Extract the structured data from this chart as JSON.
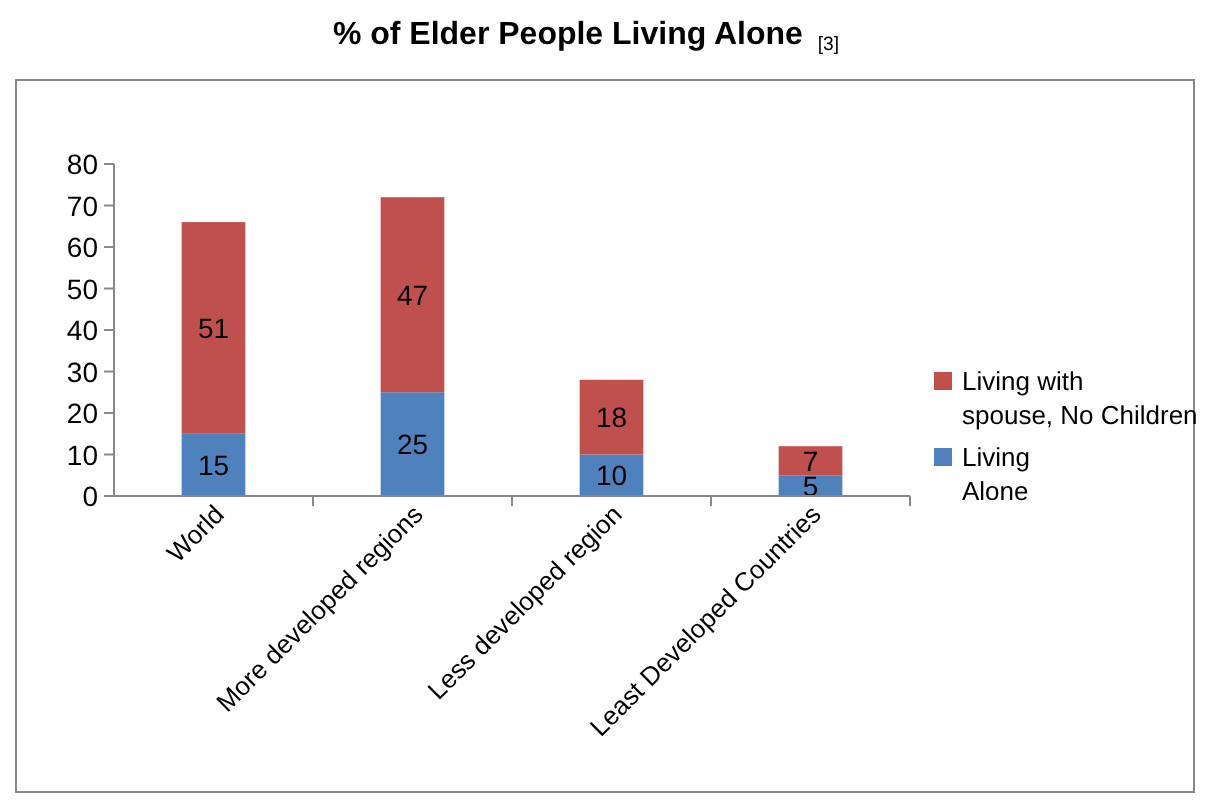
{
  "chart_data": {
    "type": "bar",
    "title": "% of Elder People Living Alone $_{[3]}$",
    "categories": [
      "World",
      "More developed regions",
      "Less developed region",
      "Least Developed Countries"
    ],
    "stacked": true,
    "data_labels": true,
    "legend": "right",
    "grid": false,
    "ylim": [
      0,
      80
    ],
    "yticks": [
      0,
      10,
      20,
      30,
      40,
      50,
      60,
      70,
      80
    ],
    "series": [
      {
        "name": "Living Alone",
        "color": "#4f81bd",
        "values": [
          15,
          25,
          10,
          5
        ]
      },
      {
        "name": "Living with spouse, No Children",
        "color": "#c0504d",
        "values": [
          51,
          47,
          18,
          7
        ]
      }
    ]
  }
}
